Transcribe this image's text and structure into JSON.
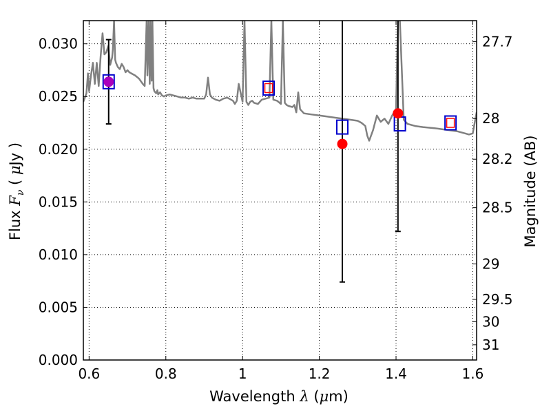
{
  "chart_data": {
    "type": "scatter",
    "title": "",
    "xlabel": "Wavelength",
    "xlabel_symbol": "λ",
    "xlabel_unit_open": " (",
    "xlabel_unit_mu": "μ",
    "xlabel_unit_close": "m)",
    "ylabel": "Flux",
    "ylabel_symbol": "F",
    "ylabel_symbol_sub": "ν",
    "ylabel_unit_open": "  ( ",
    "ylabel_unit_mu": "μ",
    "ylabel_unit_close": "Jy )",
    "y2label": "Magnitude (AB)",
    "xlim": [
      0.585,
      1.61
    ],
    "ylim": [
      0.0,
      0.0322
    ],
    "grid": true,
    "grid_style": "dotted",
    "x_ticks": [
      {
        "value": 0.6,
        "label": "0.6"
      },
      {
        "value": 0.8,
        "label": "0.8"
      },
      {
        "value": 1.0,
        "label": "1"
      },
      {
        "value": 1.2,
        "label": "1.2"
      },
      {
        "value": 1.4,
        "label": "1.4"
      },
      {
        "value": 1.6,
        "label": "1.6"
      }
    ],
    "y_ticks": [
      {
        "value": 0.0,
        "label": "0.000"
      },
      {
        "value": 0.005,
        "label": "0.005"
      },
      {
        "value": 0.01,
        "label": "0.010"
      },
      {
        "value": 0.015,
        "label": "0.015"
      },
      {
        "value": 0.02,
        "label": "0.020"
      },
      {
        "value": 0.025,
        "label": "0.025"
      },
      {
        "value": 0.03,
        "label": "0.030"
      }
    ],
    "y2_ticks": [
      {
        "mag": 27.7,
        "label": "27.7"
      },
      {
        "mag": 28.0,
        "label": "28"
      },
      {
        "mag": 28.2,
        "label": "28.2"
      },
      {
        "mag": 28.5,
        "label": "28.5"
      },
      {
        "mag": 29.0,
        "label": "29"
      },
      {
        "mag": 29.5,
        "label": "29.5"
      },
      {
        "mag": 30.0,
        "label": "30"
      },
      {
        "mag": 31.0,
        "label": "31"
      }
    ],
    "spectrum": {
      "color": "#808080",
      "x": [
        0.585,
        0.593,
        0.597,
        0.6,
        0.605,
        0.61,
        0.615,
        0.62,
        0.625,
        0.63,
        0.635,
        0.64,
        0.645,
        0.65,
        0.655,
        0.66,
        0.662,
        0.665,
        0.668,
        0.67,
        0.675,
        0.68,
        0.685,
        0.69,
        0.695,
        0.7,
        0.705,
        0.71,
        0.72,
        0.73,
        0.74,
        0.745,
        0.75,
        0.752,
        0.755,
        0.758,
        0.76,
        0.763,
        0.765,
        0.768,
        0.77,
        0.775,
        0.778,
        0.78,
        0.785,
        0.79,
        0.795,
        0.8,
        0.81,
        0.82,
        0.83,
        0.84,
        0.85,
        0.86,
        0.87,
        0.88,
        0.89,
        0.9,
        0.905,
        0.91,
        0.915,
        0.92,
        0.93,
        0.94,
        0.95,
        0.96,
        0.97,
        0.975,
        0.98,
        0.985,
        0.99,
        1.0,
        1.005,
        1.01,
        1.015,
        1.02,
        1.025,
        1.03,
        1.04,
        1.05,
        1.06,
        1.07,
        1.075,
        1.08,
        1.09,
        1.1,
        1.105,
        1.11,
        1.115,
        1.12,
        1.13,
        1.135,
        1.14,
        1.145,
        1.15,
        1.16,
        1.18,
        1.2,
        1.22,
        1.24,
        1.26,
        1.28,
        1.3,
        1.31,
        1.32,
        1.325,
        1.33,
        1.34,
        1.35,
        1.36,
        1.37,
        1.38,
        1.39,
        1.4,
        1.405,
        1.41,
        1.42,
        1.43,
        1.45,
        1.47,
        1.5,
        1.52,
        1.54,
        1.56,
        1.58,
        1.59,
        1.6,
        1.61
      ],
      "y": [
        0.0245,
        0.0253,
        0.0272,
        0.0255,
        0.027,
        0.0282,
        0.0262,
        0.0282,
        0.026,
        0.0288,
        0.031,
        0.029,
        0.0292,
        0.0298,
        0.028,
        0.0287,
        0.0295,
        0.0322,
        0.0285,
        0.0282,
        0.0278,
        0.0276,
        0.0281,
        0.0278,
        0.0273,
        0.0275,
        0.0273,
        0.0272,
        0.027,
        0.0267,
        0.0262,
        0.026,
        0.0322,
        0.027,
        0.0322,
        0.0262,
        0.0322,
        0.0265,
        0.0322,
        0.0258,
        0.0255,
        0.0253,
        0.0256,
        0.0252,
        0.0254,
        0.0251,
        0.025,
        0.0251,
        0.0252,
        0.0251,
        0.025,
        0.0249,
        0.0249,
        0.0248,
        0.0249,
        0.0248,
        0.0248,
        0.0248,
        0.0252,
        0.0268,
        0.0252,
        0.0249,
        0.0247,
        0.0246,
        0.0248,
        0.0249,
        0.0247,
        0.0246,
        0.0243,
        0.0246,
        0.0262,
        0.0245,
        0.0322,
        0.0245,
        0.0242,
        0.0245,
        0.0246,
        0.0244,
        0.0243,
        0.0247,
        0.0248,
        0.0249,
        0.0322,
        0.0247,
        0.0246,
        0.0243,
        0.0322,
        0.0244,
        0.0242,
        0.0241,
        0.024,
        0.0242,
        0.0235,
        0.0254,
        0.0238,
        0.0234,
        0.0233,
        0.0232,
        0.0231,
        0.023,
        0.0229,
        0.0228,
        0.0227,
        0.0225,
        0.0222,
        0.0213,
        0.0208,
        0.0218,
        0.0232,
        0.0226,
        0.0229,
        0.0224,
        0.0232,
        0.0238,
        0.0322,
        0.0322,
        0.0228,
        0.0224,
        0.0222,
        0.0221,
        0.022,
        0.0219,
        0.0218,
        0.0217,
        0.0215,
        0.0214,
        0.0215,
        0.0235
      ]
    },
    "error_bars": [
      {
        "x": 0.651,
        "low": 0.0224,
        "high": 0.0304,
        "cap_low": true,
        "cap_high": true
      },
      {
        "x": 1.26,
        "low": 0.0074,
        "high": 0.0322,
        "cap_low": true,
        "cap_high": false
      },
      {
        "x": 1.405,
        "low": 0.0122,
        "high": 0.0322,
        "cap_low": true,
        "cap_high": false
      }
    ],
    "blue_squares": [
      {
        "x": 0.651,
        "y": 0.0264
      },
      {
        "x": 1.068,
        "y": 0.0258
      },
      {
        "x": 1.26,
        "y": 0.0221
      },
      {
        "x": 1.41,
        "y": 0.0224
      },
      {
        "x": 1.542,
        "y": 0.0225
      }
    ],
    "red_open_squares": [
      {
        "x": 1.068,
        "y": 0.0258
      },
      {
        "x": 1.542,
        "y": 0.0225
      }
    ],
    "red_circles": [
      {
        "x": 1.26,
        "y": 0.0205
      },
      {
        "x": 1.405,
        "y": 0.0234
      }
    ],
    "purple_circles": [
      {
        "x": 0.651,
        "y": 0.0264
      }
    ],
    "colors": {
      "blue": "#0000cc",
      "red": "#ff0000",
      "purple": "#aa00bb",
      "grid": "#000000",
      "axis": "#000000"
    }
  }
}
